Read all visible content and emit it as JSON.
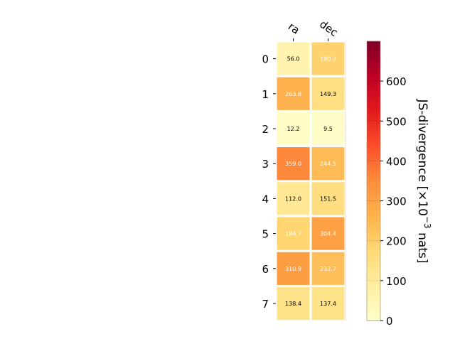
{
  "chart_data": {
    "type": "heatmap",
    "columns": [
      "ra",
      "dec"
    ],
    "rows": [
      "0",
      "1",
      "2",
      "3",
      "4",
      "5",
      "6",
      "7"
    ],
    "values": [
      [
        56.0,
        190.3
      ],
      [
        263.8,
        149.3
      ],
      [
        12.2,
        9.5
      ],
      [
        359.0,
        244.5
      ],
      [
        112.0,
        151.5
      ],
      [
        184.7,
        304.4
      ],
      [
        310.9,
        232.7
      ],
      [
        138.4,
        137.4
      ]
    ],
    "value_labels": [
      [
        "56.0",
        "190.3"
      ],
      [
        "263.8",
        "149.3"
      ],
      [
        "12.2",
        "9.5"
      ],
      [
        "359.0",
        "244.5"
      ],
      [
        "112.0",
        "151.5"
      ],
      [
        "184.7",
        "304.4"
      ],
      [
        "310.9",
        "232.7"
      ],
      [
        "138.4",
        "137.4"
      ]
    ],
    "colorbar": {
      "label": "JS-divergence [×10⁻³ nats]",
      "label_base": "JS-divergence [×10",
      "label_exp": "−3",
      "label_tail": " nats]",
      "range": [
        0,
        700
      ],
      "ticks": [
        0,
        100,
        200,
        300,
        400,
        500,
        600
      ],
      "tick_labels": [
        "0",
        "100",
        "200",
        "300",
        "400",
        "500",
        "600"
      ],
      "colormap": "YlOrRd",
      "stops": [
        "#ffffcc",
        "#ffeda0",
        "#fed976",
        "#feb24c",
        "#fd8d3c",
        "#fc4e2a",
        "#e31a1c",
        "#bd0026",
        "#800026"
      ]
    },
    "grid": false,
    "legend": "colorbar-right"
  }
}
